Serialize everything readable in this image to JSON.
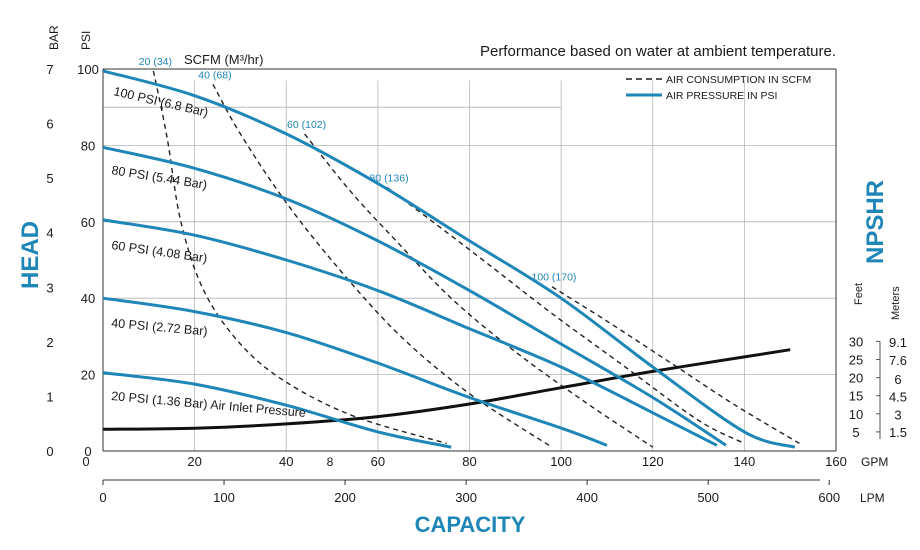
{
  "chart_data": {
    "type": "line",
    "title": "Performance based on water at ambient temperature.",
    "xlabel": "CAPACITY",
    "ylabel": "HEAD",
    "y2label": "NPSHR",
    "x_unit_primary": "GPM",
    "x_unit_secondary": "LPM",
    "y_unit_primary": "PSI",
    "y_unit_secondary": "BAR",
    "npshr_unit_feet": "Feet",
    "npshr_unit_meters": "Meters",
    "scfm_title": "SCFM (M³/hr)",
    "xlim": [
      0,
      160
    ],
    "ylim": [
      0,
      100
    ],
    "grid": true,
    "x_ticks_gpm": [
      "0",
      "20",
      "40",
      "60",
      "80",
      "100",
      "120",
      "140",
      "160"
    ],
    "x_ticks_lpm": [
      "0",
      "100",
      "200",
      "300",
      "400",
      "500",
      "600"
    ],
    "extra_tick_label": "8",
    "y_ticks_psi": [
      "0",
      "20",
      "40",
      "60",
      "80",
      "100"
    ],
    "y_ticks_bar": [
      "0",
      "1",
      "2",
      "3",
      "4",
      "5",
      "6",
      "7"
    ],
    "npshr_feet_ticks": [
      "5",
      "10",
      "15",
      "20",
      "25",
      "30"
    ],
    "npshr_meters_ticks": [
      "1.5",
      "3",
      "4.5",
      "6",
      "7.6",
      "9.1"
    ],
    "legend": {
      "position": "top-right",
      "entries": [
        {
          "label": "AIR CONSUMPTION IN SCFM",
          "style": "dashed",
          "color": "#1a1a1a"
        },
        {
          "label": "AIR PRESSURE IN PSI",
          "style": "solid",
          "color": "#1f86b8"
        }
      ]
    },
    "pressure_series": [
      {
        "name": "100 PSI (6.8 Bar)",
        "color": "#1f86b8",
        "points": [
          [
            0,
            99.5
          ],
          [
            20,
            93
          ],
          [
            40,
            83
          ],
          [
            60,
            70
          ],
          [
            80,
            55
          ],
          [
            100,
            40
          ],
          [
            120,
            22
          ],
          [
            140,
            5
          ],
          [
            151,
            1
          ]
        ]
      },
      {
        "name": "80 PSI (5.44 Bar)",
        "color": "#1f86b8",
        "points": [
          [
            0,
            79.5
          ],
          [
            20,
            74
          ],
          [
            40,
            66
          ],
          [
            60,
            55
          ],
          [
            80,
            42
          ],
          [
            100,
            28
          ],
          [
            120,
            14
          ],
          [
            136,
            1.5
          ]
        ]
      },
      {
        "name": "60 PSI (4.08 Bar)",
        "color": "#1f86b8",
        "points": [
          [
            0,
            60.5
          ],
          [
            20,
            56.5
          ],
          [
            40,
            50
          ],
          [
            60,
            42
          ],
          [
            80,
            32
          ],
          [
            100,
            22
          ],
          [
            120,
            10
          ],
          [
            134,
            1.5
          ]
        ]
      },
      {
        "name": "40 PSI (2.72 Bar)",
        "color": "#1f86b8",
        "points": [
          [
            0,
            40
          ],
          [
            20,
            36.5
          ],
          [
            40,
            31
          ],
          [
            60,
            23
          ],
          [
            80,
            14
          ],
          [
            100,
            6
          ],
          [
            110,
            1.5
          ]
        ]
      },
      {
        "name": "20 PSI (1.36 Bar) Air Inlet Pressure",
        "color": "#1f86b8",
        "points": [
          [
            0,
            20.5
          ],
          [
            20,
            17.5
          ],
          [
            40,
            12
          ],
          [
            60,
            5
          ],
          [
            76,
            1
          ]
        ]
      }
    ],
    "scfm_series": [
      {
        "name": "20 (34)",
        "points": [
          [
            11,
            99.5
          ],
          [
            14,
            82
          ],
          [
            17,
            60
          ],
          [
            22,
            42
          ],
          [
            30,
            28
          ],
          [
            40,
            18
          ],
          [
            55,
            9
          ],
          [
            75,
            2
          ]
        ]
      },
      {
        "name": "40 (68)",
        "points": [
          [
            24,
            96
          ],
          [
            30,
            83
          ],
          [
            40,
            65
          ],
          [
            52,
            47
          ],
          [
            65,
            30
          ],
          [
            80,
            15
          ],
          [
            98,
            1
          ]
        ]
      },
      {
        "name": "60 (102)",
        "points": [
          [
            44,
            83
          ],
          [
            54,
            68
          ],
          [
            64,
            55
          ],
          [
            76,
            40
          ],
          [
            90,
            26
          ],
          [
            105,
            13
          ],
          [
            120,
            1
          ]
        ]
      },
      {
        "name": "80 (136)",
        "points": [
          [
            62,
            69
          ],
          [
            72,
            60
          ],
          [
            84,
            49
          ],
          [
            98,
            36
          ],
          [
            114,
            22
          ],
          [
            130,
            8
          ],
          [
            140,
            2
          ]
        ]
      },
      {
        "name": "100 (170)",
        "points": [
          [
            98,
            43
          ],
          [
            110,
            34
          ],
          [
            124,
            23
          ],
          [
            138,
            12
          ],
          [
            152,
            2
          ]
        ]
      }
    ],
    "npshr_curve": {
      "name": "NPSHR",
      "color": "#111111",
      "points": [
        [
          0,
          6
        ],
        [
          20,
          6.3
        ],
        [
          40,
          7.5
        ],
        [
          60,
          9.5
        ],
        [
          80,
          13
        ],
        [
          100,
          17.5
        ],
        [
          120,
          22
        ],
        [
          140,
          26
        ],
        [
          150,
          28
        ]
      ]
    }
  }
}
